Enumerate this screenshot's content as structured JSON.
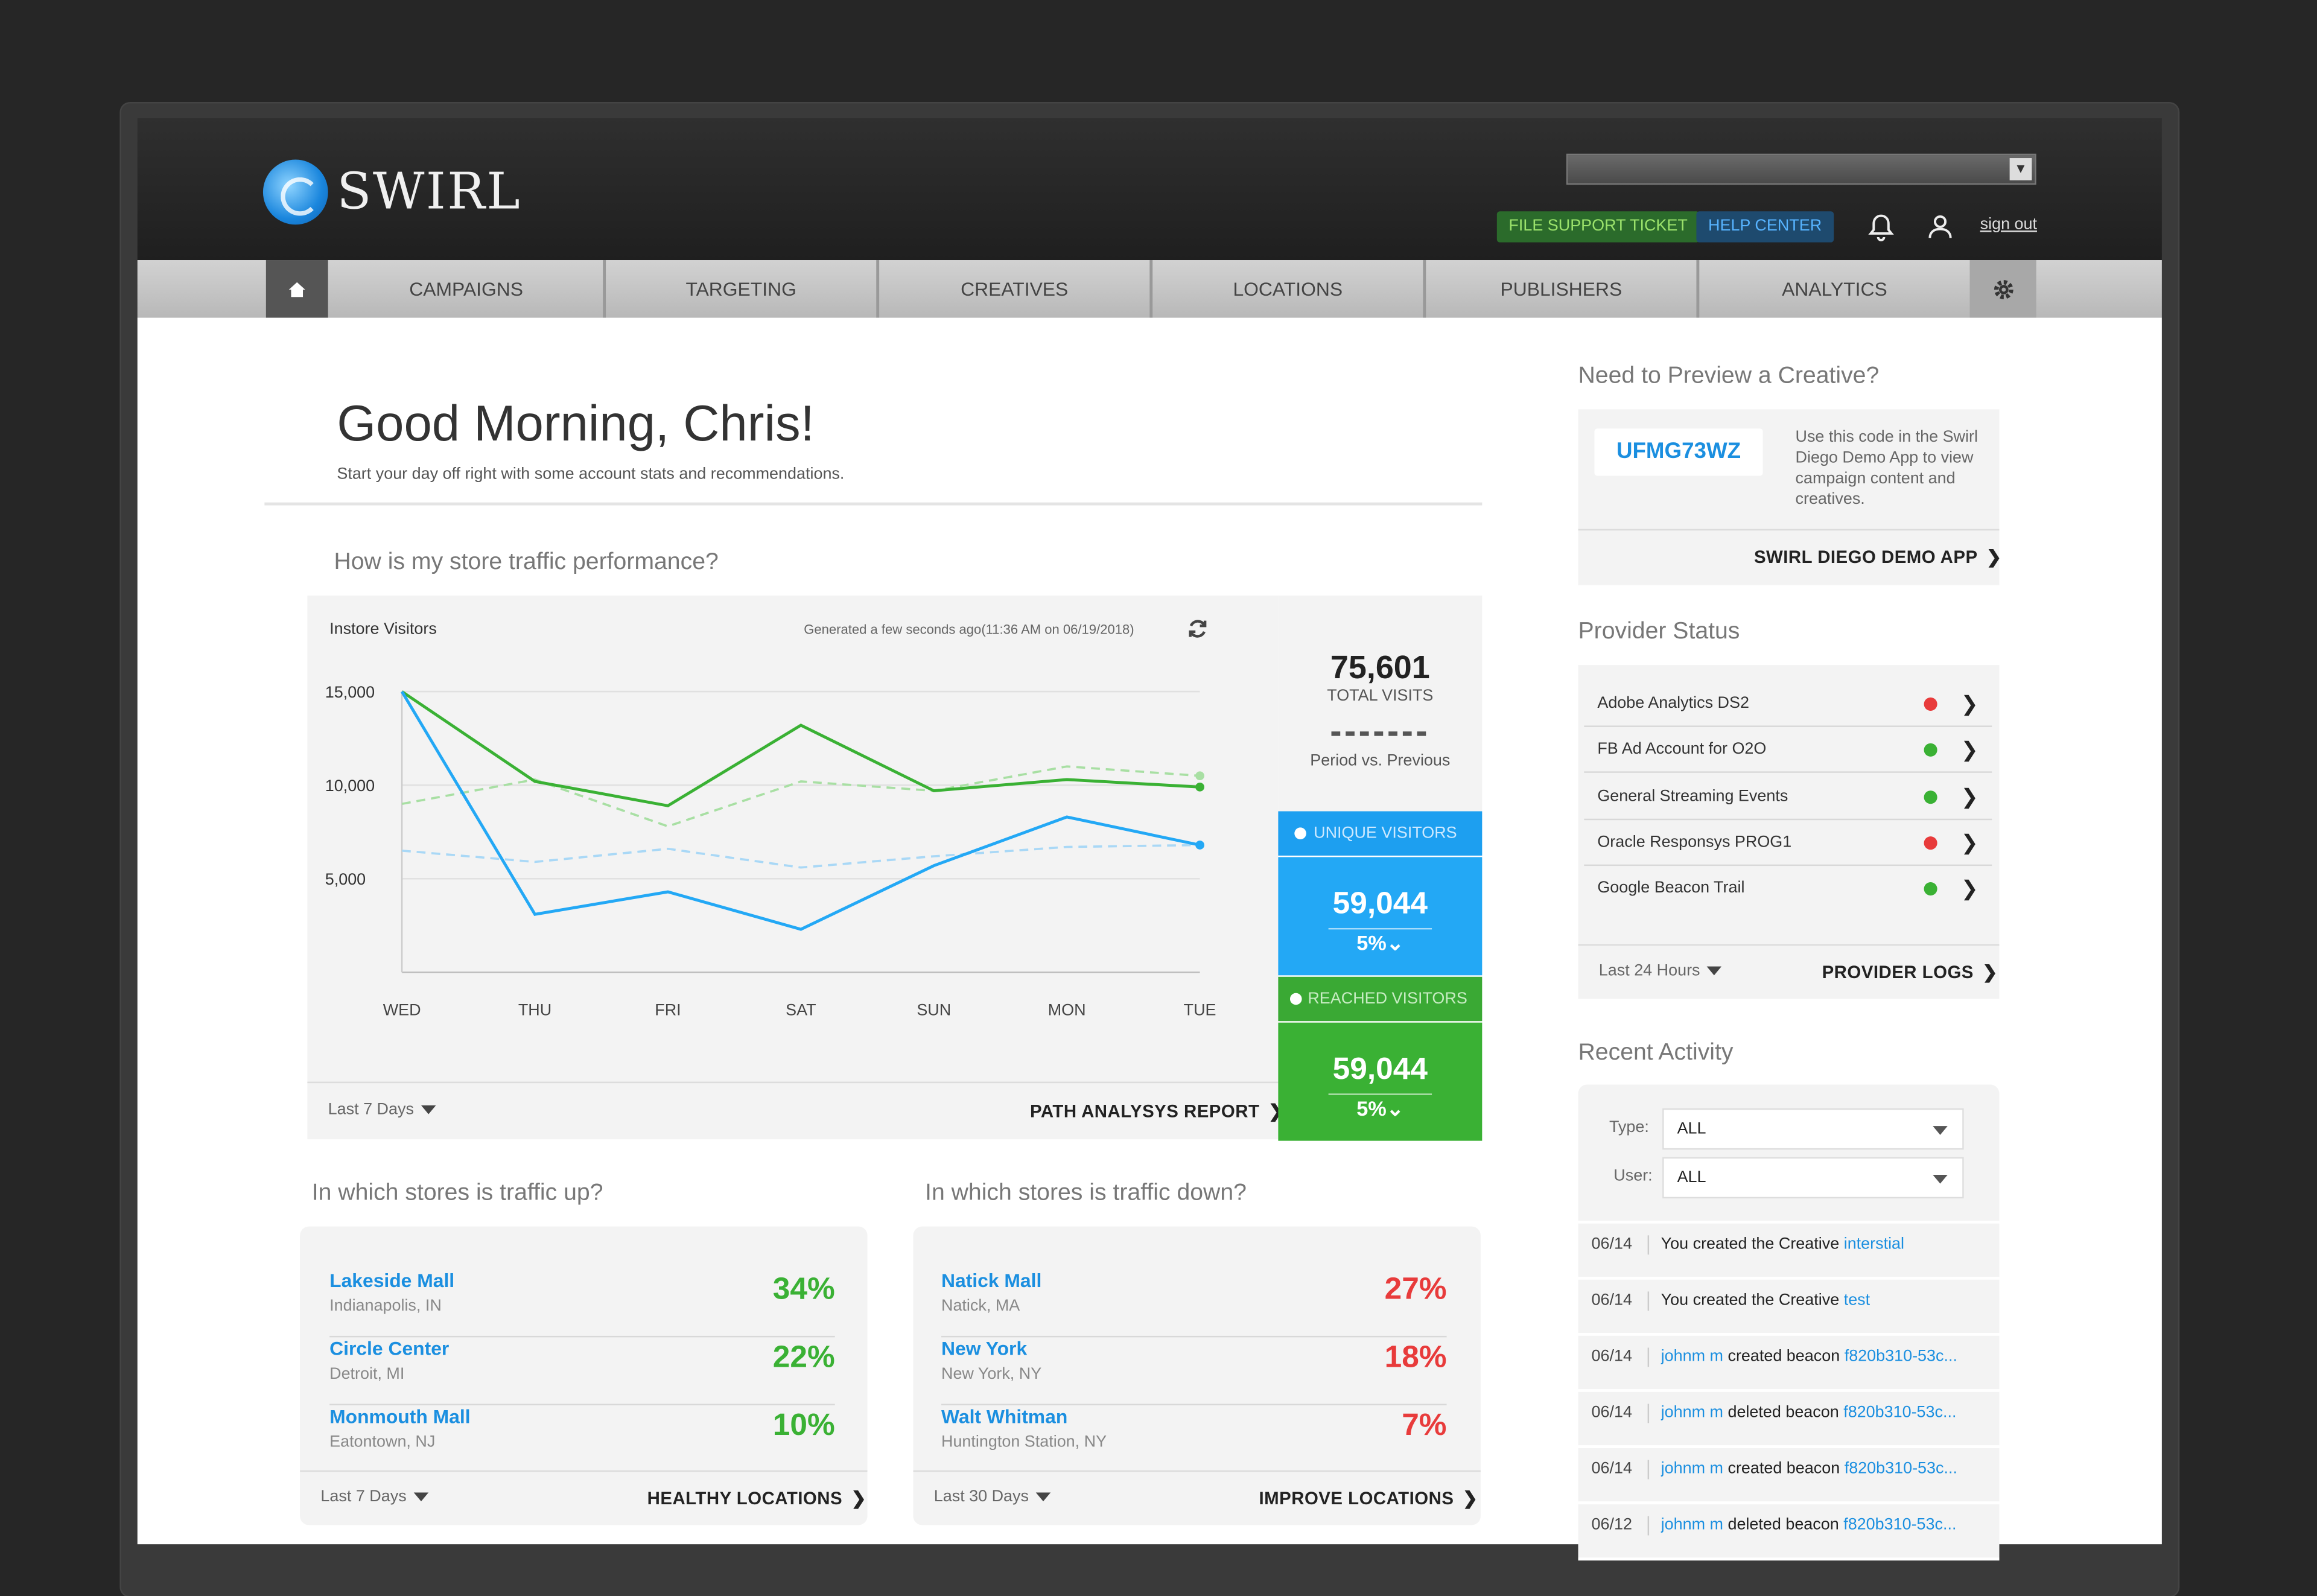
{
  "brand": {
    "name": "SWIRL"
  },
  "header": {
    "support_label": "FILE SUPPORT TICKET",
    "help_label": "HELP CENTER",
    "signout_label": "sign out",
    "account_select_value": ""
  },
  "nav": {
    "items": [
      "CAMPAIGNS",
      "TARGETING",
      "CREATIVES",
      "LOCATIONS",
      "PUBLISHERS",
      "ANALYTICS"
    ]
  },
  "greeting": {
    "title": "Good Morning, Chris!",
    "subtitle": "Start your day off right with some account stats and recommendations."
  },
  "traffic": {
    "question": "How is my store traffic performance?",
    "chart_title": "Instore Visitors",
    "generated": "Generated a few seconds ago(11:36 AM on 06/19/2018)",
    "period_label": "Last 7 Days",
    "report_link": "PATH ANALYSYS REPORT",
    "total": {
      "value": "75,601",
      "label": "TOTAL VISITS",
      "compare_label": "Period vs. Previous"
    },
    "unique": {
      "label": "UNIQUE VISITORS",
      "value": "59,044",
      "pct": "5%"
    },
    "reached": {
      "label": "REACHED VISITORS",
      "value": "59,044",
      "pct": "5%"
    }
  },
  "chart_data": {
    "type": "line",
    "title": "Instore Visitors",
    "categories": [
      "WED",
      "THU",
      "FRI",
      "SAT",
      "SUN",
      "MON",
      "TUE"
    ],
    "yticks": [
      5000,
      10000,
      15000
    ],
    "ytick_labels": [
      "5,000",
      "10,000",
      "15,000"
    ],
    "ylim": [
      0,
      15000
    ],
    "grid": true,
    "series": [
      {
        "color": "#3ab134",
        "style": "solid",
        "values": [
          15000,
          10200,
          8900,
          13200,
          9700,
          10300,
          9900
        ]
      },
      {
        "color": "#23a8f5",
        "style": "solid",
        "values": [
          15000,
          3100,
          4300,
          2300,
          5700,
          8300,
          6800
        ]
      },
      {
        "color": "#a8dfa3",
        "style": "dashed",
        "values": [
          9000,
          10300,
          7800,
          10200,
          9700,
          11000,
          10500
        ]
      },
      {
        "color": "#a9d8f6",
        "style": "dashed",
        "values": [
          6500,
          5900,
          6600,
          5600,
          6200,
          6700,
          6800
        ]
      }
    ]
  },
  "up": {
    "question": "In which stores is traffic up?",
    "period_label": "Last 7 Days",
    "link": "HEALTHY LOCATIONS",
    "color": "#3ab134",
    "stores": [
      {
        "name": "Lakeside Mall",
        "city": "Indianapolis, IN",
        "pct": "34%"
      },
      {
        "name": "Circle Center",
        "city": "Detroit, MI",
        "pct": "22%"
      },
      {
        "name": "Monmouth Mall",
        "city": "Eatontown, NJ",
        "pct": "10%"
      }
    ]
  },
  "down": {
    "question": "In which stores is traffic down?",
    "period_label": "Last 30 Days",
    "link": "IMPROVE LOCATIONS",
    "color": "#e83b3b",
    "stores": [
      {
        "name": "Natick Mall",
        "city": "Natick, MA",
        "pct": "27%"
      },
      {
        "name": "New York",
        "city": "New York, NY",
        "pct": "18%"
      },
      {
        "name": "Walt Whitman",
        "city": "Huntington Station, NY",
        "pct": "7%"
      }
    ]
  },
  "preview": {
    "heading": "Need to Preview  a Creative?",
    "code": "UFMG73WZ",
    "description": "Use this code in the Swirl Diego Demo App to view campaign content and creatives.",
    "link": "SWIRL DIEGO DEMO APP"
  },
  "providers": {
    "heading": "Provider Status",
    "period_label": "Last 24 Hours",
    "link": "PROVIDER LOGS",
    "items": [
      {
        "name": "Adobe Analytics DS2",
        "status_color": "#e83b3b"
      },
      {
        "name": "FB Ad Account for O2O",
        "status_color": "#3ab134"
      },
      {
        "name": "General Streaming Events",
        "status_color": "#3ab134"
      },
      {
        "name": "Oracle Responsys PROG1",
        "status_color": "#e83b3b"
      },
      {
        "name": "Google Beacon Trail",
        "status_color": "#3ab134"
      }
    ]
  },
  "activity": {
    "heading": "Recent Activity",
    "type_label": "Type:",
    "type_value": "ALL",
    "user_label": "User:",
    "user_value": "ALL",
    "items": [
      {
        "date": "06/14",
        "actor": "",
        "text": "You created the Creative",
        "target": "interstial"
      },
      {
        "date": "06/14",
        "actor": "",
        "text": "You created the Creative",
        "target": "test"
      },
      {
        "date": "06/14",
        "actor": "johnm m",
        "text": "created beacon",
        "target": "f820b310-53c..."
      },
      {
        "date": "06/14",
        "actor": "johnm m",
        "text": "deleted beacon",
        "target": "f820b310-53c..."
      },
      {
        "date": "06/14",
        "actor": "johnm m",
        "text": "created beacon",
        "target": "f820b310-53c..."
      },
      {
        "date": "06/12",
        "actor": "johnm m",
        "text": "deleted beacon",
        "target": "f820b310-53c..."
      }
    ]
  }
}
